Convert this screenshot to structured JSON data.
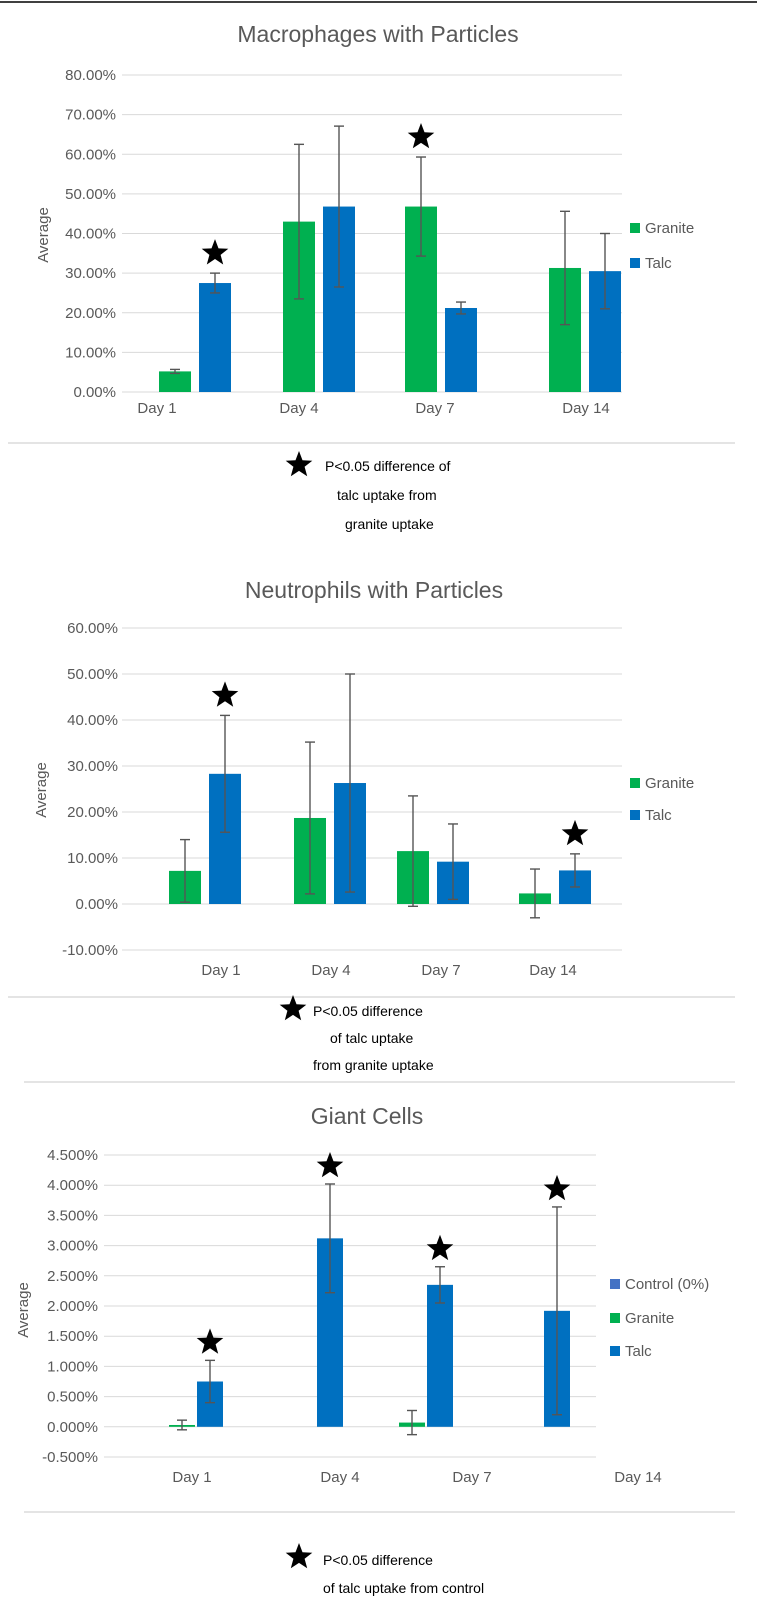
{
  "chart_data": [
    {
      "type": "bar",
      "title": "Macrophages with Particles",
      "ylabel": "Average",
      "ylim": [
        0,
        80
      ],
      "yticks": [
        "0.00%",
        "10.00%",
        "20.00%",
        "30.00%",
        "40.00%",
        "50.00%",
        "60.00%",
        "70.00%",
        "80.00%"
      ],
      "categories": [
        "Day 1",
        "Day 4",
        "Day 7",
        "Day 14"
      ],
      "series": [
        {
          "name": "Granite",
          "color": "#00b050",
          "values": [
            5.2,
            43.0,
            46.8,
            31.3
          ],
          "error": [
            0.5,
            19.5,
            12.5,
            14.3
          ]
        },
        {
          "name": "Talc",
          "color": "#0070c0",
          "values": [
            27.5,
            46.8,
            21.2,
            30.5
          ],
          "error": [
            2.5,
            20.3,
            1.5,
            9.5
          ]
        }
      ],
      "significance": [
        {
          "category": "Day 1",
          "series": "Talc"
        },
        {
          "category": "Day 7",
          "series": "Granite"
        }
      ],
      "legend": "right",
      "note_lines": [
        "P<0.05 difference of",
        "talc uptake from",
        "granite uptake"
      ]
    },
    {
      "type": "bar",
      "title": "Neutrophils with Particles",
      "ylabel": "Average",
      "ylim": [
        -10,
        60
      ],
      "yticks": [
        "-10.00%",
        "0.00%",
        "10.00%",
        "20.00%",
        "30.00%",
        "40.00%",
        "50.00%",
        "60.00%"
      ],
      "categories": [
        "Day 1",
        "Day 4",
        "Day 7",
        "Day 14"
      ],
      "series": [
        {
          "name": "Granite",
          "color": "#00b050",
          "values": [
            7.2,
            18.7,
            11.5,
            2.3
          ],
          "error": [
            6.8,
            16.5,
            12.0,
            5.3
          ]
        },
        {
          "name": "Talc",
          "color": "#0070c0",
          "values": [
            28.3,
            26.3,
            9.2,
            7.3
          ],
          "error": [
            12.7,
            23.7,
            8.2,
            3.6
          ]
        }
      ],
      "significance": [
        {
          "category": "Day 1",
          "series": "Talc"
        },
        {
          "category": "Day 14",
          "series": "Talc"
        }
      ],
      "legend": "right",
      "note_lines": [
        "P<0.05 difference",
        "of talc uptake",
        "from granite uptake"
      ]
    },
    {
      "type": "bar",
      "title": "Giant Cells",
      "ylabel": "Average",
      "ylim": [
        -0.5,
        4.5
      ],
      "yticks": [
        "-0.500%",
        "0.000%",
        "0.500%",
        "1.000%",
        "1.500%",
        "2.000%",
        "2.500%",
        "3.000%",
        "3.500%",
        "4.000%",
        "4.500%"
      ],
      "categories": [
        "Day 1",
        "Day 4",
        "Day 7",
        "Day 14"
      ],
      "series": [
        {
          "name": "Control (0%)",
          "color": "#4472c4",
          "values": [
            0,
            0,
            0,
            0
          ],
          "error": [
            0,
            0,
            0,
            0
          ]
        },
        {
          "name": "Granite",
          "color": "#00b050",
          "values": [
            0.03,
            null,
            0.07,
            null
          ],
          "error": [
            0.08,
            null,
            0.2,
            null
          ]
        },
        {
          "name": "Talc",
          "color": "#0070c0",
          "values": [
            0.75,
            3.12,
            2.35,
            1.92
          ],
          "error": [
            0.35,
            0.9,
            0.3,
            1.72
          ]
        }
      ],
      "significance": [
        {
          "category": "Day 1",
          "series": "Talc"
        },
        {
          "category": "Day 4",
          "series": "Talc"
        },
        {
          "category": "Day 7",
          "series": "Talc"
        },
        {
          "category": "Day 14",
          "series": "Talc"
        }
      ],
      "legend": "right",
      "note_lines": [
        "P<0.05 difference",
        "of talc uptake from control"
      ]
    }
  ]
}
